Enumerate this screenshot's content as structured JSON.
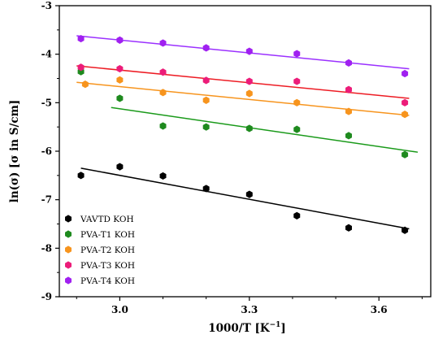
{
  "chart_data": {
    "type": "scatter",
    "xlabel": "1000/T [K",
    "xlabel_unit_sup": "−1",
    "xlabel_close": "]",
    "ylabel": "ln(σ) [σ in S/cm]",
    "xlim": [
      2.86,
      3.72
    ],
    "ylim": [
      -9,
      -3
    ],
    "x_ticks": [
      3.0,
      3.3,
      3.6
    ],
    "x_tick_labels": [
      "3.0",
      "3.3",
      "3.6"
    ],
    "y_ticks": [
      -9,
      -8,
      -7,
      -6,
      -5,
      -4,
      -3
    ],
    "y_tick_labels": [
      "-9",
      "-8",
      "-7",
      "-6",
      "-5",
      "-4",
      "-3"
    ],
    "grid": false,
    "legend_position": "bottom-left",
    "marker": "hexagon",
    "series": [
      {
        "name": "VAVTD KOH",
        "color": "#000000",
        "line_color": "#000000",
        "points": [
          [
            2.91,
            -6.5
          ],
          [
            3.0,
            -6.32
          ],
          [
            3.1,
            -6.51
          ],
          [
            3.2,
            -6.77
          ],
          [
            3.3,
            -6.89
          ],
          [
            3.41,
            -7.33
          ],
          [
            3.53,
            -7.58
          ],
          [
            3.66,
            -7.63
          ]
        ],
        "fit": [
          [
            2.91,
            -6.35
          ],
          [
            3.67,
            -7.6
          ]
        ]
      },
      {
        "name": "PVA-T1 KOH",
        "color": "#1e8a1e",
        "line_color": "#1a9a1a",
        "points": [
          [
            2.91,
            -4.36
          ],
          [
            3.0,
            -4.91
          ],
          [
            3.1,
            -5.48
          ],
          [
            3.2,
            -5.5
          ],
          [
            3.3,
            -5.53
          ],
          [
            3.41,
            -5.55
          ],
          [
            3.53,
            -5.68
          ],
          [
            3.66,
            -6.07
          ]
        ],
        "fit": [
          [
            2.98,
            -5.1
          ],
          [
            3.69,
            -6.02
          ]
        ]
      },
      {
        "name": "PVA-T2 KOH",
        "color": "#f7941d",
        "line_color": "#f7941d",
        "points": [
          [
            2.92,
            -4.62
          ],
          [
            3.0,
            -4.53
          ],
          [
            3.1,
            -4.79
          ],
          [
            3.2,
            -4.95
          ],
          [
            3.3,
            -4.81
          ],
          [
            3.41,
            -5.0
          ],
          [
            3.53,
            -5.18
          ],
          [
            3.66,
            -5.24
          ]
        ],
        "fit": [
          [
            2.9,
            -4.58
          ],
          [
            3.67,
            -5.26
          ]
        ]
      },
      {
        "name": "PVA-T3 KOH",
        "color": "#ec1c79",
        "line_color": "#ed1c24",
        "points": [
          [
            2.91,
            -4.27
          ],
          [
            3.0,
            -4.3
          ],
          [
            3.1,
            -4.37
          ],
          [
            3.2,
            -4.54
          ],
          [
            3.3,
            -4.56
          ],
          [
            3.41,
            -4.56
          ],
          [
            3.53,
            -4.73
          ],
          [
            3.66,
            -5.0
          ]
        ],
        "fit": [
          [
            2.9,
            -4.24
          ],
          [
            3.67,
            -4.91
          ]
        ]
      },
      {
        "name": "PVA-T4 KOH",
        "color": "#a020f0",
        "line_color": "#9b30ff",
        "points": [
          [
            2.91,
            -3.68
          ],
          [
            3.0,
            -3.71
          ],
          [
            3.1,
            -3.77
          ],
          [
            3.2,
            -3.87
          ],
          [
            3.3,
            -3.94
          ],
          [
            3.41,
            -3.99
          ],
          [
            3.53,
            -4.18
          ],
          [
            3.66,
            -4.4
          ]
        ],
        "fit": [
          [
            2.9,
            -3.62
          ],
          [
            3.67,
            -4.3
          ]
        ]
      }
    ]
  }
}
